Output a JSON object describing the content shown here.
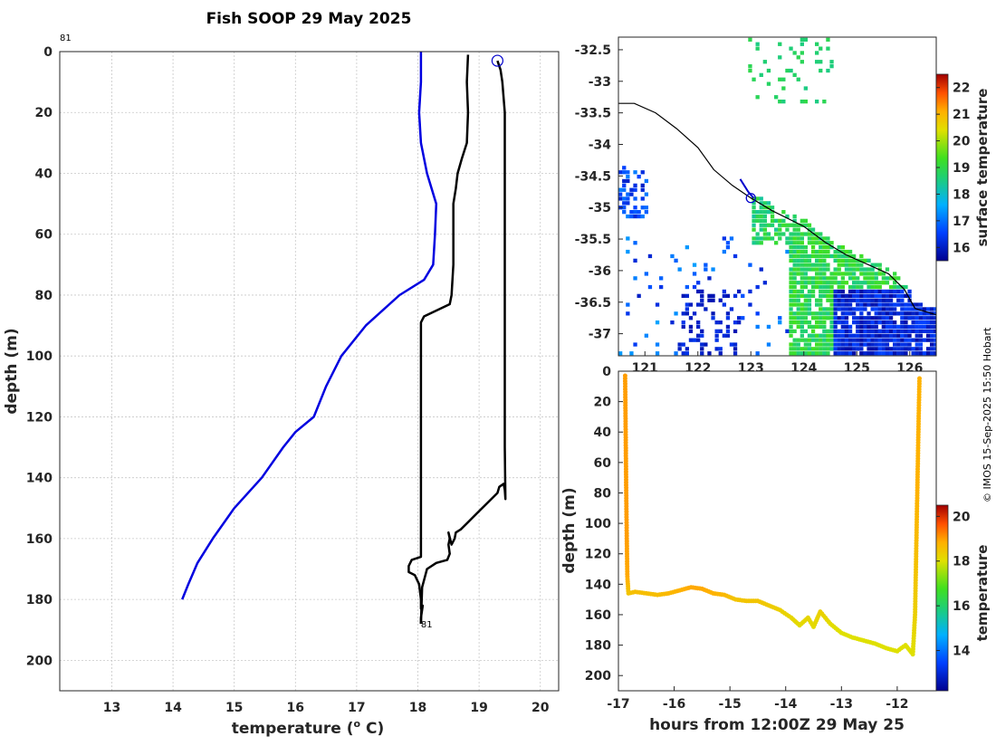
{
  "title": "Fish SOOP 29 May 2025",
  "credit": "© IMOS 15-Sep-2025 15:50 Hobart",
  "colors": {
    "profile": "#000000",
    "climatology": "#0000e0",
    "track": "#0000cc"
  },
  "chart_data": [
    {
      "type": "line",
      "name": "temperature-depth profile",
      "xlabel": "temperature (o C)",
      "xlabel_parts": {
        "base": "temperature (",
        "sup": "o",
        "tail": " C)"
      },
      "ylabel": "depth (m)",
      "xlim": [
        12.15,
        20.3
      ],
      "ylim": [
        0,
        210
      ],
      "y_reversed": true,
      "xticks": [
        13,
        14,
        15,
        16,
        17,
        18,
        19,
        20
      ],
      "yticks": [
        0,
        20,
        40,
        60,
        80,
        100,
        120,
        140,
        160,
        180,
        200
      ],
      "grid": true,
      "annotations": [
        {
          "text": "81",
          "x": 12.2,
          "y": -5
        },
        {
          "text": "81",
          "x": 18.05,
          "y": 188
        }
      ],
      "marker": {
        "shape": "circle",
        "x": 19.3,
        "y": 3
      },
      "series": [
        {
          "name": "climatology",
          "points": [
            [
              18.05,
              0
            ],
            [
              18.05,
              10
            ],
            [
              18.02,
              20
            ],
            [
              18.05,
              30
            ],
            [
              18.15,
              40
            ],
            [
              18.3,
              50
            ],
            [
              18.28,
              60
            ],
            [
              18.25,
              70
            ],
            [
              18.1,
              75
            ],
            [
              17.7,
              80
            ],
            [
              17.15,
              90
            ],
            [
              16.75,
              100
            ],
            [
              16.5,
              110
            ],
            [
              16.3,
              120
            ],
            [
              16.0,
              125
            ],
            [
              15.8,
              130
            ],
            [
              15.45,
              140
            ],
            [
              15.0,
              150
            ],
            [
              14.65,
              160
            ],
            [
              14.4,
              168
            ],
            [
              14.25,
              175
            ],
            [
              14.15,
              180
            ]
          ]
        },
        {
          "name": "profile-descent",
          "points": [
            [
              18.82,
              1
            ],
            [
              18.8,
              10
            ],
            [
              18.82,
              20
            ],
            [
              18.8,
              30
            ],
            [
              18.72,
              35
            ],
            [
              18.65,
              40
            ],
            [
              18.62,
              45
            ],
            [
              18.58,
              50
            ],
            [
              18.58,
              60
            ],
            [
              18.58,
              70
            ],
            [
              18.55,
              80
            ],
            [
              18.52,
              83
            ],
            [
              18.1,
              87
            ],
            [
              18.05,
              89
            ],
            [
              18.05,
              120
            ],
            [
              18.05,
              150
            ],
            [
              18.05,
              166
            ],
            [
              17.9,
              167
            ],
            [
              17.85,
              169
            ],
            [
              17.85,
              171
            ],
            [
              17.95,
              172
            ],
            [
              18.02,
              175
            ],
            [
              18.05,
              180
            ],
            [
              18.05,
              183
            ],
            [
              18.08,
              182
            ],
            [
              18.05,
              186
            ],
            [
              18.05,
              188
            ]
          ]
        },
        {
          "name": "profile-ascent",
          "points": [
            [
              18.05,
              188
            ],
            [
              18.07,
              176
            ],
            [
              18.15,
              170
            ],
            [
              18.3,
              168
            ],
            [
              18.48,
              167
            ],
            [
              18.52,
              165
            ],
            [
              18.5,
              162
            ],
            [
              18.52,
              160
            ],
            [
              18.5,
              158
            ],
            [
              18.55,
              162
            ],
            [
              18.6,
              160
            ],
            [
              18.62,
              158
            ],
            [
              18.7,
              157
            ],
            [
              18.8,
              155
            ],
            [
              18.95,
              152
            ],
            [
              19.1,
              149
            ],
            [
              19.2,
              147
            ],
            [
              19.3,
              145
            ],
            [
              19.33,
              143
            ],
            [
              19.4,
              142
            ],
            [
              19.42,
              144
            ],
            [
              19.43,
              147
            ],
            [
              19.42,
              130
            ],
            [
              19.42,
              100
            ],
            [
              19.42,
              60
            ],
            [
              19.42,
              20
            ],
            [
              19.38,
              10
            ],
            [
              19.35,
              6
            ],
            [
              19.3,
              3
            ]
          ]
        }
      ]
    },
    {
      "type": "heatmap",
      "name": "surface temperature map",
      "colorbar_label": "surface temperature",
      "xlim": [
        120.5,
        126.5
      ],
      "ylim": [
        -37.35,
        -32.3
      ],
      "xticks": [
        121,
        122,
        123,
        124,
        125,
        126
      ],
      "yticks": [
        -32.5,
        -33,
        -33.5,
        -34,
        -34.5,
        -35,
        -35.5,
        -36,
        -36.5,
        -37
      ],
      "colorbar": {
        "min": 15.5,
        "max": 22.5,
        "ticks": [
          16,
          17,
          18,
          19,
          20,
          21,
          22
        ]
      },
      "ship_position": {
        "lon": 123.0,
        "lat": -34.85
      },
      "track": [
        [
          122.8,
          -34.55
        ],
        [
          122.95,
          -34.75
        ],
        [
          123.05,
          -34.85
        ]
      ],
      "coastline": [
        [
          120.5,
          -33.35
        ],
        [
          120.8,
          -33.35
        ],
        [
          121.2,
          -33.5
        ],
        [
          121.6,
          -33.75
        ],
        [
          122.0,
          -34.05
        ],
        [
          122.3,
          -34.4
        ],
        [
          122.65,
          -34.65
        ],
        [
          123.0,
          -34.85
        ],
        [
          123.4,
          -35.05
        ],
        [
          124.0,
          -35.3
        ],
        [
          124.4,
          -35.55
        ],
        [
          124.8,
          -35.75
        ],
        [
          125.2,
          -35.9
        ],
        [
          125.6,
          -36.05
        ],
        [
          125.9,
          -36.3
        ],
        [
          126.1,
          -36.6
        ],
        [
          126.5,
          -36.7
        ]
      ]
    },
    {
      "type": "scatter",
      "name": "depth vs time",
      "xlabel": "hours from 12:00Z 29 May 25",
      "ylabel": "depth (m)",
      "colorbar_label": "temperature",
      "xlim": [
        -17.0,
        -11.3
      ],
      "ylim": [
        0,
        210
      ],
      "y_reversed": true,
      "xticks": [
        -17,
        -16,
        -15,
        -14,
        -13,
        -12
      ],
      "yticks": [
        0,
        20,
        40,
        60,
        80,
        100,
        120,
        140,
        160,
        180,
        200
      ],
      "colorbar": {
        "min": 12.2,
        "max": 20.5,
        "ticks": [
          14,
          16,
          18,
          20
        ]
      },
      "points": [
        [
          -16.88,
          3,
          19.0
        ],
        [
          -16.87,
          40,
          19.0
        ],
        [
          -16.86,
          80,
          19.0
        ],
        [
          -16.85,
          110,
          19.0
        ],
        [
          -16.84,
          135,
          18.9
        ],
        [
          -16.82,
          146,
          18.5
        ],
        [
          -16.7,
          145,
          18.6
        ],
        [
          -16.5,
          146,
          18.6
        ],
        [
          -16.3,
          147,
          18.6
        ],
        [
          -16.1,
          146,
          18.7
        ],
        [
          -15.9,
          144,
          18.8
        ],
        [
          -15.7,
          142,
          18.9
        ],
        [
          -15.5,
          143,
          18.9
        ],
        [
          -15.3,
          146,
          18.8
        ],
        [
          -15.1,
          147,
          18.7
        ],
        [
          -14.9,
          150,
          18.5
        ],
        [
          -14.7,
          151,
          18.5
        ],
        [
          -14.5,
          151,
          18.5
        ],
        [
          -14.3,
          154,
          18.4
        ],
        [
          -14.1,
          157,
          18.3
        ],
        [
          -13.9,
          162,
          18.2
        ],
        [
          -13.75,
          167,
          18.1
        ],
        [
          -13.6,
          162,
          18.2
        ],
        [
          -13.5,
          168,
          18.1
        ],
        [
          -13.38,
          158,
          18.3
        ],
        [
          -13.2,
          166,
          18.1
        ],
        [
          -13.0,
          172,
          18.0
        ],
        [
          -12.8,
          175,
          18.0
        ],
        [
          -12.6,
          177,
          18.0
        ],
        [
          -12.4,
          179,
          18.0
        ],
        [
          -12.2,
          182,
          18.0
        ],
        [
          -12.0,
          184,
          18.0
        ],
        [
          -11.85,
          180,
          18.0
        ],
        [
          -11.72,
          186,
          18.0
        ],
        [
          -11.68,
          160,
          18.3
        ],
        [
          -11.66,
          120,
          18.6
        ],
        [
          -11.64,
          80,
          18.8
        ],
        [
          -11.62,
          40,
          18.8
        ],
        [
          -11.6,
          3,
          18.8
        ]
      ]
    }
  ]
}
